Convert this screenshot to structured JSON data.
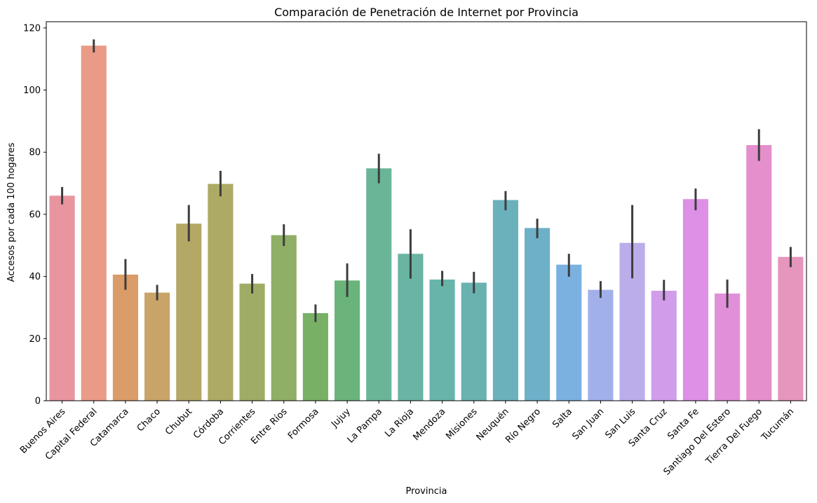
{
  "chart_data": {
    "type": "bar",
    "title": "Comparación de Penetración de Internet por Provincia",
    "xlabel": "Provincia",
    "ylabel": "Accesos por cada 100 hogares",
    "ylim": [
      0,
      122
    ],
    "yticks": [
      0,
      20,
      40,
      60,
      80,
      100,
      120
    ],
    "grid": false,
    "categories": [
      "Buenos Aires",
      "Capital Federal",
      "Catamarca",
      "Chaco",
      "Chubut",
      "Córdoba",
      "Corrientes",
      "Entre Ríos",
      "Formosa",
      "Jujuy",
      "La Pampa",
      "La Rioja",
      "Mendoza",
      "Misiones",
      "Neuquén",
      "Río Negro",
      "Salta",
      "San Juan",
      "San Luis",
      "Santa Cruz",
      "Santa Fe",
      "Santiago Del Estero",
      "Tierra Del Fuego",
      "Tucumán"
    ],
    "values": [
      66,
      114.3,
      40.6,
      34.8,
      57,
      69.8,
      37.7,
      53.3,
      28.2,
      38.7,
      74.8,
      47.3,
      39,
      38,
      64.6,
      55.6,
      43.8,
      35.7,
      50.8,
      35.4,
      64.9,
      34.5,
      82.3,
      46.3
    ],
    "error_low": [
      63.2,
      112.1,
      35.7,
      32.3,
      51.3,
      65.8,
      34.5,
      49.8,
      25.3,
      33.4,
      70,
      39.3,
      36.9,
      34.6,
      61.3,
      52.3,
      39.9,
      33.1,
      39.4,
      32.3,
      61.3,
      29.9,
      77.2,
      43
    ],
    "error_high": [
      68.8,
      116.3,
      45.6,
      37.3,
      63,
      74,
      40.8,
      56.8,
      31,
      44.2,
      79.5,
      55.2,
      41.8,
      41.5,
      67.5,
      58.6,
      47.3,
      38.5,
      63,
      38.9,
      68.3,
      39,
      87.4,
      49.5
    ],
    "colors": [
      "#e8959f",
      "#e99b87",
      "#da9c68",
      "#c8a469",
      "#b5a866",
      "#adaa66",
      "#9fac66",
      "#8fae66",
      "#78b165",
      "#6ab37b",
      "#6ab598",
      "#6ab4a3",
      "#68b3aa",
      "#69b2b0",
      "#6ab1bb",
      "#6eb0c8",
      "#7bb1e0",
      "#a2b0ea",
      "#bbadea",
      "#d19cea",
      "#dd90e5",
      "#e28fd9",
      "#e58fcc",
      "#e695bc"
    ],
    "error_color": "#3d3d3d"
  }
}
